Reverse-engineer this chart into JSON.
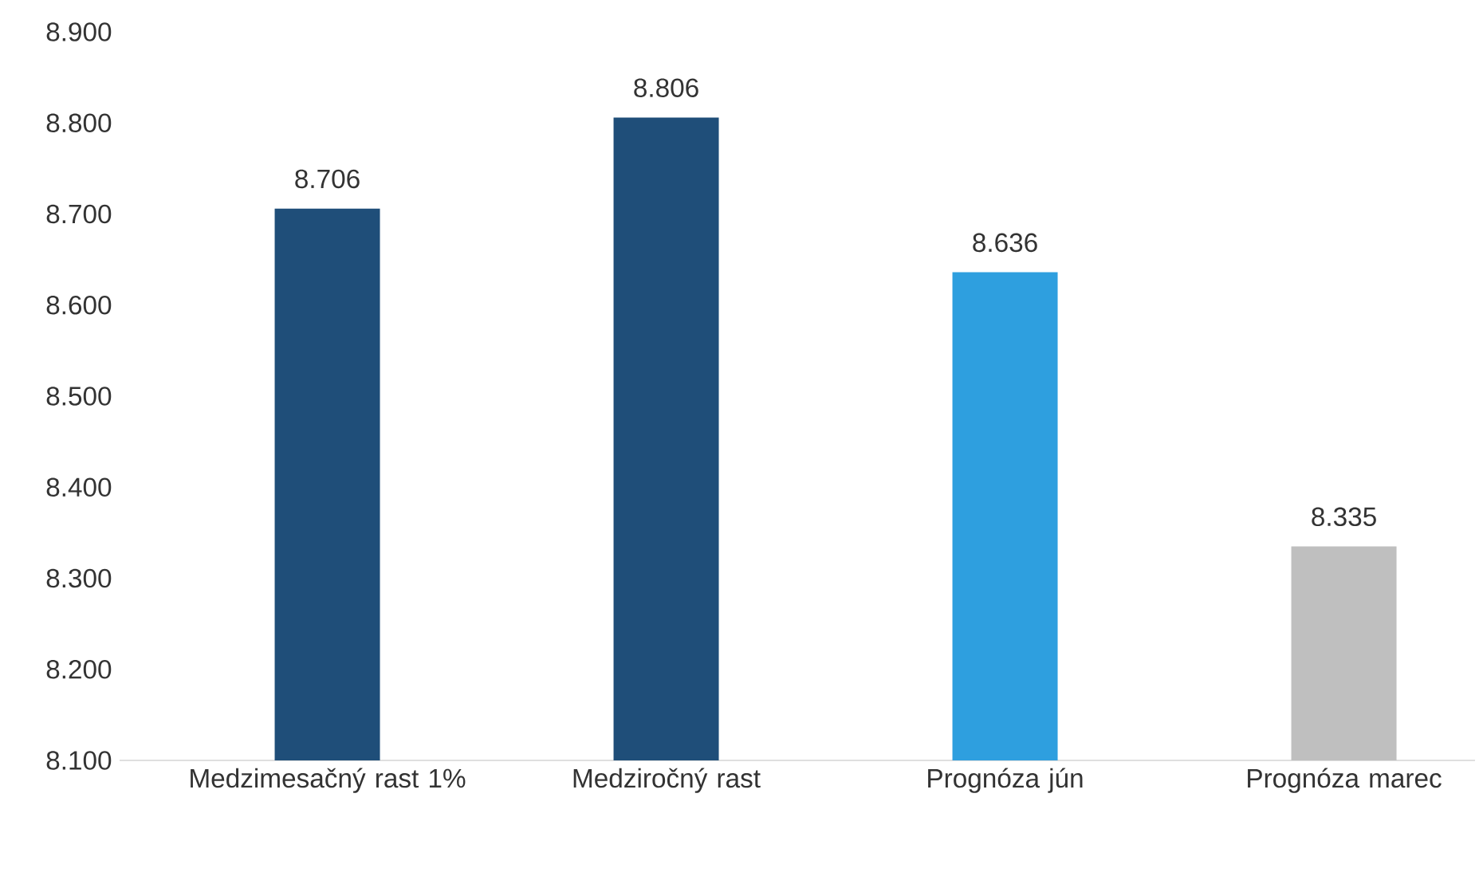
{
  "chart_data": {
    "type": "bar",
    "categories": [
      "Medzimesačný rast 1%",
      "Medziročný rast",
      "Prognóza jún",
      "Prognóza marec"
    ],
    "values": [
      8706,
      8806,
      8636,
      8335
    ],
    "value_labels": [
      "8.706",
      "8.806",
      "8.636",
      "8.335"
    ],
    "colors": [
      "#1f4e79",
      "#1f4e79",
      "#2e9fdf",
      "#bfbfbf"
    ],
    "ylim": [
      8100,
      8900
    ],
    "yticks": [
      {
        "value": 8100,
        "label": "8.100"
      },
      {
        "value": 8200,
        "label": "8.200"
      },
      {
        "value": 8300,
        "label": "8.300"
      },
      {
        "value": 8400,
        "label": "8.400"
      },
      {
        "value": 8500,
        "label": "8.500"
      },
      {
        "value": 8600,
        "label": "8.600"
      },
      {
        "value": 8700,
        "label": "8.700"
      },
      {
        "value": 8800,
        "label": "8.800"
      },
      {
        "value": 8900,
        "label": "8.900"
      }
    ]
  }
}
